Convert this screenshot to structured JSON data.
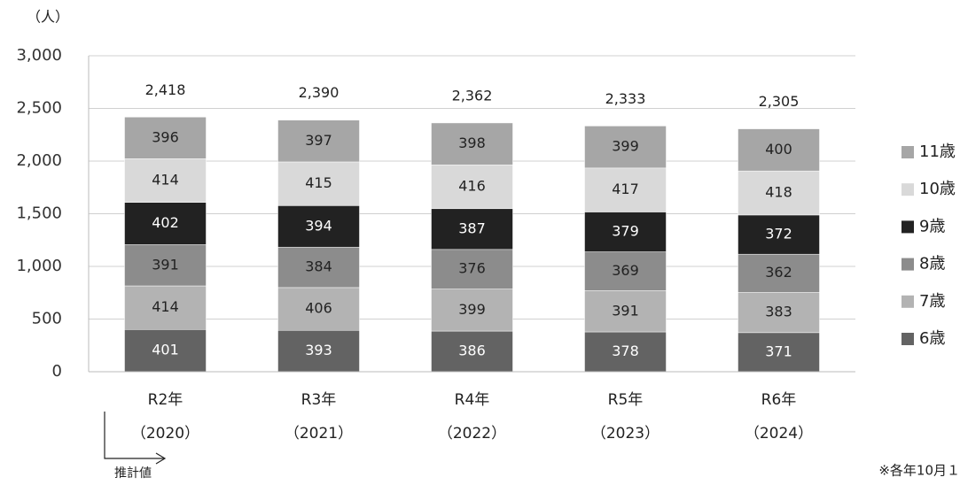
{
  "chart_data": {
    "type": "stacked_bar",
    "y_axis_label": "（人）",
    "categories": [
      [
        "R2年",
        "（2020）"
      ],
      [
        "R3年",
        "（2021）"
      ],
      [
        "R4年",
        "（2022）"
      ],
      [
        "R5年",
        "（2023）"
      ],
      [
        "R6年",
        "（2024）"
      ]
    ],
    "series": [
      {
        "name": "6歳",
        "color": "#636363",
        "values": [
          401,
          393,
          386,
          378,
          371
        ]
      },
      {
        "name": "7歳",
        "color": "#b3b3b3",
        "values": [
          414,
          406,
          399,
          391,
          383
        ]
      },
      {
        "name": "8歳",
        "color": "#8c8c8c",
        "values": [
          391,
          384,
          376,
          369,
          362
        ]
      },
      {
        "name": "9歳",
        "color": "#222222",
        "values": [
          402,
          394,
          387,
          379,
          372
        ]
      },
      {
        "name": "10歳",
        "color": "#d9d9d9",
        "values": [
          414,
          415,
          416,
          417,
          418
        ]
      },
      {
        "name": "11歳",
        "color": "#a6a6a6",
        "values": [
          396,
          397,
          398,
          399,
          400
        ]
      }
    ],
    "totals": [
      2418,
      2390,
      2362,
      2333,
      2305
    ],
    "total_labels": [
      "2,418",
      "2,390",
      "2,362",
      "2,333",
      "2,305"
    ],
    "ylim": [
      0,
      3000
    ],
    "yticks": [
      0,
      500,
      {
        "value": 1000,
        "label": "1,000"
      },
      {
        "value": 1500,
        "label": "1,500"
      },
      {
        "value": 2000,
        "label": "2,000"
      },
      {
        "value": 2500,
        "label": "2,500"
      },
      {
        "value": 3000,
        "label": "3,000"
      }
    ],
    "grid": true,
    "legend": "right",
    "annotations": [
      "推計値",
      "※各年10月１"
    ]
  }
}
